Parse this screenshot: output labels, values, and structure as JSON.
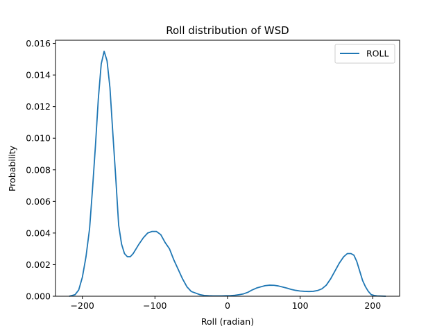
{
  "chart_data": {
    "type": "line",
    "title": "Roll distribution of WSD",
    "xlabel": "Roll (radian)",
    "ylabel": "Probability",
    "xlim": [
      -237,
      237
    ],
    "ylim": [
      0,
      0.0162
    ],
    "xticks": [
      -200,
      -100,
      0,
      100,
      200
    ],
    "xtick_labels": [
      "−200",
      "−100",
      "0",
      "100",
      "200"
    ],
    "yticks": [
      0,
      0.002,
      0.004,
      0.006,
      0.008,
      0.01,
      0.012,
      0.014,
      0.016
    ],
    "ytick_labels": [
      "0.000",
      "0.002",
      "0.004",
      "0.006",
      "0.008",
      "0.010",
      "0.012",
      "0.014",
      "0.016"
    ],
    "grid": false,
    "legend_position": "top-right",
    "colors": {
      "ROLL": "#1f77b4"
    },
    "series": [
      {
        "name": "ROLL",
        "x": [
          -218,
          -210,
          -205,
          -200,
          -195,
          -190,
          -186,
          -182,
          -178,
          -174,
          -170,
          -166,
          -162,
          -158,
          -154,
          -150,
          -146,
          -142,
          -138,
          -134,
          -130,
          -126,
          -122,
          -116,
          -110,
          -104,
          -98,
          -92,
          -86,
          -80,
          -74,
          -68,
          -62,
          -56,
          -50,
          -44,
          -38,
          -32,
          -26,
          -20,
          -14,
          -8,
          -2,
          4,
          10,
          16,
          22,
          28,
          34,
          40,
          46,
          52,
          58,
          64,
          70,
          76,
          82,
          88,
          94,
          100,
          106,
          112,
          118,
          124,
          130,
          136,
          142,
          148,
          154,
          160,
          165,
          170,
          174,
          178,
          182,
          186,
          190,
          194,
          198,
          202,
          206,
          212,
          218
        ],
        "y": [
          0.0,
          0.0001,
          0.0004,
          0.0012,
          0.0025,
          0.0043,
          0.0068,
          0.0095,
          0.0125,
          0.0147,
          0.0155,
          0.0149,
          0.0132,
          0.0103,
          0.0075,
          0.0045,
          0.0033,
          0.0027,
          0.0025,
          0.0025,
          0.0027,
          0.003,
          0.0033,
          0.0037,
          0.004,
          0.0041,
          0.0041,
          0.0039,
          0.0034,
          0.003,
          0.0023,
          0.0017,
          0.0011,
          0.0006,
          0.0003,
          0.0002,
          0.0001,
          5e-05,
          3e-05,
          2e-05,
          2e-05,
          2e-05,
          3e-05,
          4e-05,
          6e-05,
          0.0001,
          0.00015,
          0.00025,
          0.0004,
          0.00052,
          0.0006,
          0.00067,
          0.0007,
          0.00069,
          0.00065,
          0.00058,
          0.00051,
          0.00043,
          0.00037,
          0.00033,
          0.00031,
          0.0003,
          0.00031,
          0.00036,
          0.00047,
          0.0007,
          0.0011,
          0.0016,
          0.0021,
          0.0025,
          0.0027,
          0.0027,
          0.0026,
          0.0022,
          0.0016,
          0.001,
          0.0006,
          0.0003,
          0.0001,
          5e-05,
          2e-05,
          1e-05,
          0.0
        ]
      }
    ]
  }
}
